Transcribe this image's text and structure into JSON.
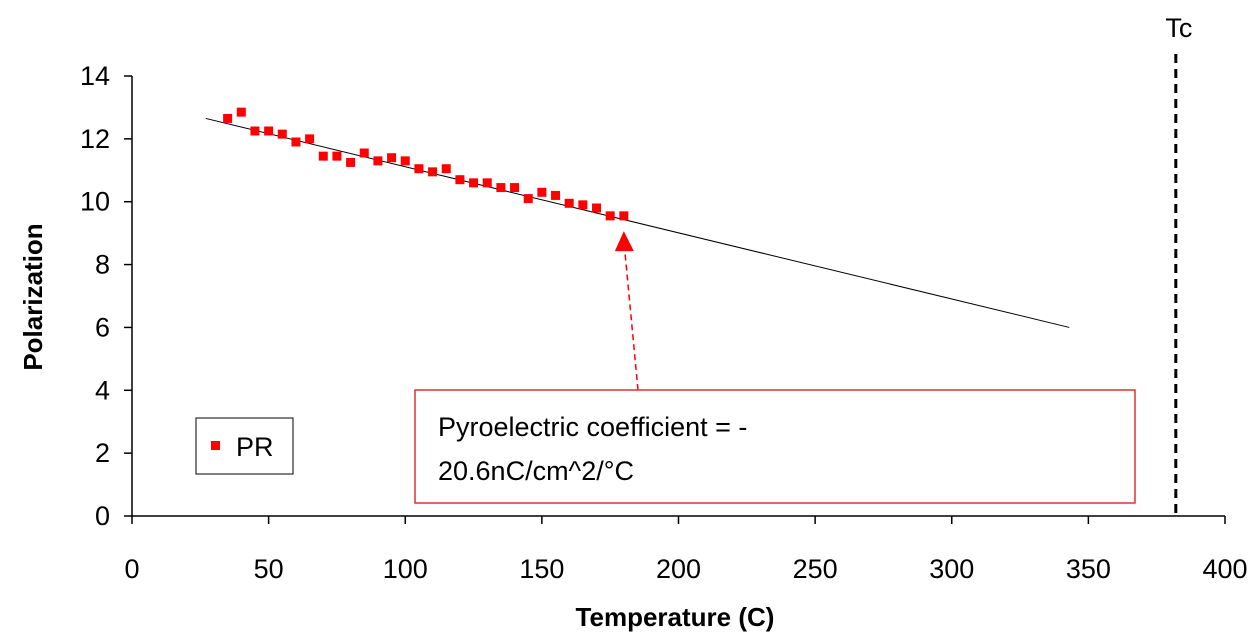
{
  "chart_data": {
    "type": "scatter",
    "xlabel": "Temperature (C)",
    "ylabel": "Polarization",
    "xlim": [
      0,
      400
    ],
    "ylim": [
      0,
      14
    ],
    "xticks": [
      0,
      50,
      100,
      150,
      200,
      250,
      300,
      350,
      400
    ],
    "yticks": [
      0,
      2,
      4,
      6,
      8,
      10,
      12,
      14
    ],
    "grid": false,
    "legend": {
      "position": "lower-left",
      "entries": [
        "PR"
      ]
    },
    "series": [
      {
        "name": "PR",
        "color": "#ff0000",
        "marker": "square",
        "points": [
          [
            35,
            12.65
          ],
          [
            40,
            12.85
          ],
          [
            45,
            12.25
          ],
          [
            50,
            12.25
          ],
          [
            55,
            12.15
          ],
          [
            60,
            11.9
          ],
          [
            65,
            12.0
          ],
          [
            70,
            11.45
          ],
          [
            75,
            11.45
          ],
          [
            80,
            11.25
          ],
          [
            85,
            11.55
          ],
          [
            90,
            11.3
          ],
          [
            95,
            11.4
          ],
          [
            100,
            11.3
          ],
          [
            105,
            11.05
          ],
          [
            110,
            10.95
          ],
          [
            115,
            11.05
          ],
          [
            120,
            10.7
          ],
          [
            125,
            10.6
          ],
          [
            130,
            10.6
          ],
          [
            135,
            10.45
          ],
          [
            140,
            10.45
          ],
          [
            145,
            10.1
          ],
          [
            150,
            10.3
          ],
          [
            155,
            10.2
          ],
          [
            160,
            9.95
          ],
          [
            165,
            9.9
          ],
          [
            170,
            9.8
          ],
          [
            175,
            9.55
          ],
          [
            180,
            9.55
          ]
        ]
      }
    ],
    "trendline": {
      "color": "#000000",
      "from": [
        27,
        12.65
      ],
      "to": [
        343,
        6.0
      ]
    },
    "reference_line": {
      "label": "Tc",
      "x": 382,
      "style": "dashed",
      "color": "#000000"
    },
    "annotation": {
      "lines": [
        "Pyroelectric coefficient = -",
        "20.6nC/cm^2/°C"
      ],
      "border_color": "#e03030",
      "arrow_color": "#ff0000",
      "arrow_target": [
        180,
        9.0
      ]
    }
  }
}
